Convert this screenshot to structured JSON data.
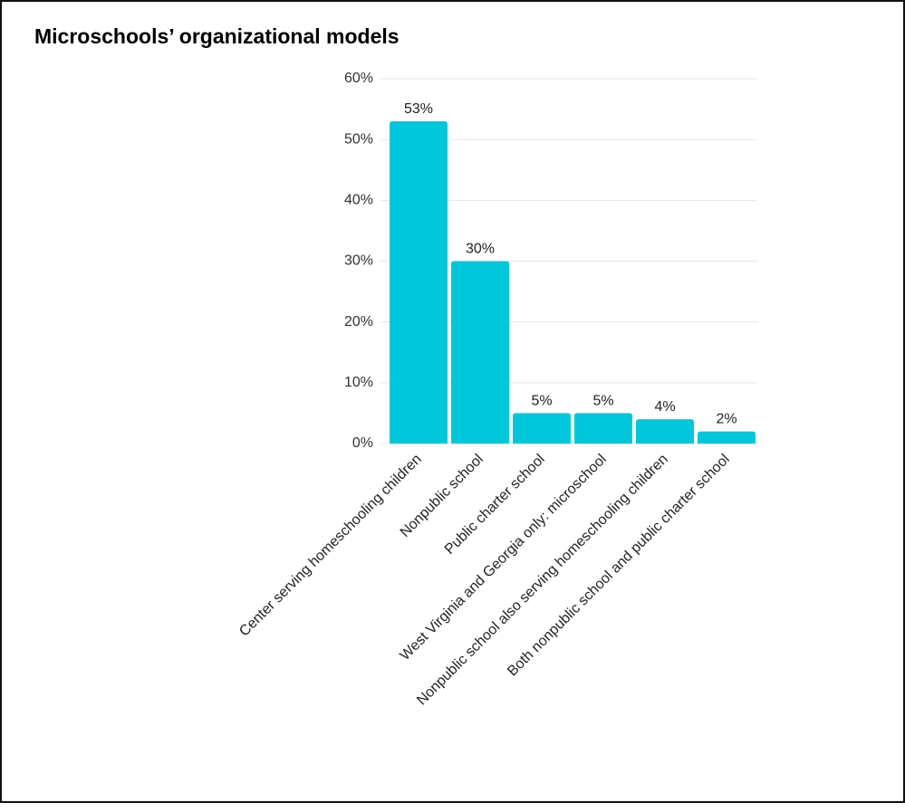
{
  "chart_data": {
    "type": "bar",
    "title": "Microschools’ organizational models",
    "categories": [
      "Center serving homeschooling children",
      "Nonpublic school",
      "Public charter school",
      "West Virginia and Georgia only: microschool",
      "Nonpublic school also serving homeschooling children",
      "Both nonpublic school and public charter school"
    ],
    "values": [
      53,
      30,
      5,
      5,
      4,
      2
    ],
    "value_labels": [
      "53%",
      "30%",
      "5%",
      "5%",
      "4%",
      "2%"
    ],
    "color": "#00c8dc",
    "ylim": [
      0,
      60
    ],
    "yticks": [
      {
        "value": 0,
        "label": "0%"
      },
      {
        "value": 10,
        "label": "10%"
      },
      {
        "value": 20,
        "label": "20%"
      },
      {
        "value": 30,
        "label": "30%"
      },
      {
        "value": 40,
        "label": "40%"
      },
      {
        "value": 50,
        "label": "50%"
      },
      {
        "value": 60,
        "label": "60%"
      }
    ],
    "grid": true
  }
}
